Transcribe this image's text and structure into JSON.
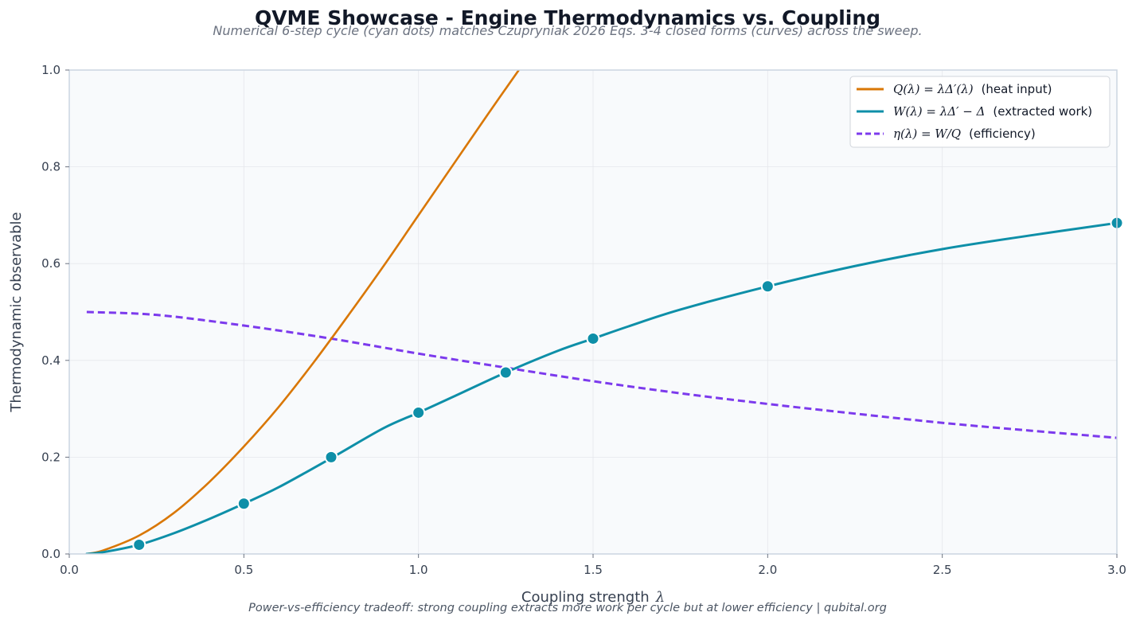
{
  "chart_data": {
    "type": "line",
    "title": "QVME Showcase - Engine Thermodynamics vs. Coupling",
    "subtitle": "Numerical 6-step cycle (cyan dots) matches Czupryniak 2026 Eqs. 3-4 closed forms (curves) across the sweep.",
    "footer": "Power-vs-efficiency tradeoff: strong coupling extracts more work per cycle but at lower efficiency  |  qubital.org",
    "xlabel": "Coupling strength",
    "xlabel_symbol": "λ",
    "ylabel": "Thermodynamic observable",
    "xlim": [
      0.0,
      3.0
    ],
    "ylim": [
      0.0,
      1.0
    ],
    "xticks": [
      "0.0",
      "0.5",
      "1.0",
      "1.5",
      "2.0",
      "2.5",
      "3.0"
    ],
    "yticks": [
      "0.0",
      "0.2",
      "0.4",
      "0.6",
      "0.8",
      "1.0"
    ],
    "grid": true,
    "legend_position": "top-right",
    "series": [
      {
        "key": "Q",
        "name_math": "Q(λ) = λΔ′(λ)",
        "name_text": "(heat input)",
        "color": "#d97706",
        "dash": "solid",
        "x": [
          0.05,
          0.1,
          0.2,
          0.3,
          0.4,
          0.5,
          0.6,
          0.7,
          0.8,
          0.9,
          1.0,
          1.1,
          1.2,
          1.3
        ],
        "y": [
          0.0,
          0.008,
          0.038,
          0.085,
          0.148,
          0.222,
          0.304,
          0.396,
          0.494,
          0.595,
          0.7,
          0.805,
          0.91,
          1.013
        ]
      },
      {
        "key": "W",
        "name_math": "W(λ) = λΔ′ − Δ",
        "name_text": "(extracted work)",
        "color": "#0e8fa8",
        "dash": "solid",
        "x": [
          0.05,
          0.1,
          0.2,
          0.3,
          0.4,
          0.5,
          0.6,
          0.75,
          0.9,
          1.0,
          1.1,
          1.25,
          1.4,
          1.5,
          1.6,
          1.75,
          2.0,
          2.25,
          2.5,
          2.75,
          3.0
        ],
        "y": [
          0.0,
          0.004,
          0.019,
          0.043,
          0.072,
          0.104,
          0.138,
          0.198,
          0.26,
          0.292,
          0.325,
          0.375,
          0.42,
          0.445,
          0.47,
          0.505,
          0.553,
          0.595,
          0.63,
          0.658,
          0.684
        ]
      },
      {
        "key": "eta",
        "name_math": "η(λ) = W/Q",
        "name_text": "(efficiency)",
        "color": "#7c3aed",
        "dash": "dashed",
        "x": [
          0.05,
          0.25,
          0.5,
          0.75,
          1.0,
          1.25,
          1.5,
          1.75,
          2.0,
          2.25,
          2.5,
          2.75,
          3.0
        ],
        "y": [
          0.5,
          0.494,
          0.472,
          0.445,
          0.414,
          0.385,
          0.357,
          0.332,
          0.31,
          0.29,
          0.271,
          0.255,
          0.24
        ]
      }
    ],
    "numerical_points": {
      "name": "Numerical 6-step cycle",
      "color": "#0e8fa8",
      "x": [
        0.2,
        0.5,
        0.75,
        1.0,
        1.25,
        1.5,
        2.0,
        3.0
      ],
      "y": [
        0.019,
        0.104,
        0.2,
        0.292,
        0.375,
        0.445,
        0.553,
        0.684
      ]
    }
  }
}
